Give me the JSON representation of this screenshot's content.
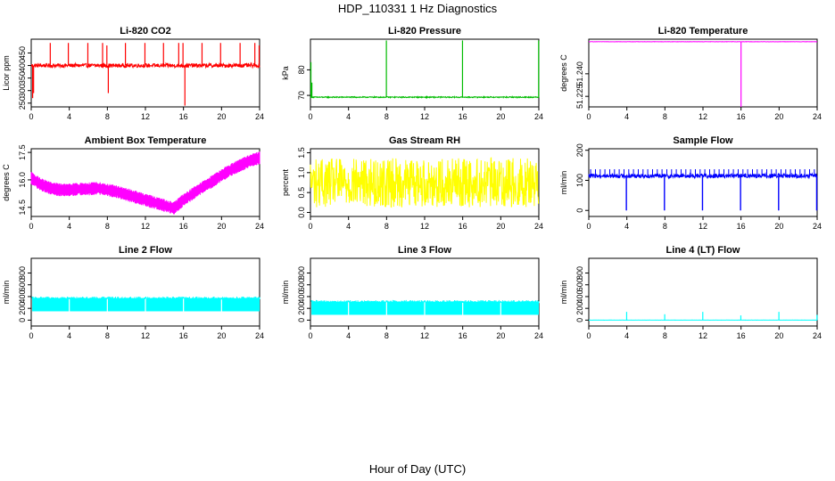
{
  "figure": {
    "title": "HDP_110331  1 Hz Diagnostics",
    "xlabel": "Hour of Day (UTC)"
  },
  "chart_data": [
    {
      "type": "line",
      "title": "Li-820 CO2",
      "ylabel": "Licor ppm",
      "color": "#ff0000",
      "xlim": [
        0,
        24
      ],
      "ylim": [
        235,
        505
      ],
      "xticks": [
        0,
        4,
        8,
        12,
        16,
        20,
        24
      ],
      "yticks": [
        250,
        300,
        350,
        400,
        450
      ],
      "baseline": 400,
      "noise": 8,
      "spikes": [
        {
          "x": 0.15,
          "y": 270
        },
        {
          "x": 0.25,
          "y": 290
        },
        {
          "x": 2.0,
          "y": 490
        },
        {
          "x": 3.9,
          "y": 490
        },
        {
          "x": 5.95,
          "y": 490
        },
        {
          "x": 7.5,
          "y": 490
        },
        {
          "x": 7.95,
          "y": 480
        },
        {
          "x": 8.1,
          "y": 290
        },
        {
          "x": 9.9,
          "y": 490
        },
        {
          "x": 11.95,
          "y": 490
        },
        {
          "x": 13.9,
          "y": 490
        },
        {
          "x": 15.5,
          "y": 490
        },
        {
          "x": 15.95,
          "y": 490
        },
        {
          "x": 16.15,
          "y": 240
        },
        {
          "x": 17.95,
          "y": 490
        },
        {
          "x": 19.9,
          "y": 490
        },
        {
          "x": 21.95,
          "y": 490
        },
        {
          "x": 23.5,
          "y": 490
        },
        {
          "x": 23.95,
          "y": 480
        }
      ]
    },
    {
      "type": "line",
      "title": "Li-820 Pressure",
      "ylabel": "kPa",
      "color": "#00bb00",
      "xlim": [
        0,
        24
      ],
      "ylim": [
        65.5,
        92
      ],
      "xticks": [
        0,
        4,
        8,
        12,
        16,
        20,
        24
      ],
      "yticks": [
        70,
        80
      ],
      "baseline": 69.3,
      "noise": 0.2,
      "spikes": [
        {
          "x": 0.05,
          "y": 83
        },
        {
          "x": 0.15,
          "y": 75
        },
        {
          "x": 7.98,
          "y": 91.5
        },
        {
          "x": 15.98,
          "y": 91.5
        },
        {
          "x": 23.98,
          "y": 91.5
        }
      ]
    },
    {
      "type": "line",
      "title": "Li-820 Temperature",
      "ylabel": "degrees C",
      "color": "#ff00ff",
      "xlim": [
        0,
        24
      ],
      "ylim": [
        51.218,
        51.263
      ],
      "xticks": [
        0,
        4,
        8,
        12,
        16,
        20,
        24
      ],
      "yticks": [
        51.225,
        51.24
      ],
      "ytick_labels": [
        "51.225",
        "51.240"
      ],
      "baseline": 51.2613,
      "noise": 0.0001,
      "spikes": [
        {
          "x": 16.0,
          "y": 51.218
        }
      ]
    },
    {
      "type": "line",
      "title": "Ambient Box Temperature",
      "ylabel": "degrees C",
      "color": "#ff00ff",
      "xlim": [
        0,
        24
      ],
      "ylim": [
        14.0,
        17.7
      ],
      "xticks": [
        0,
        4,
        8,
        12,
        16,
        20,
        24
      ],
      "yticks": [
        14.5,
        16.0,
        17.5
      ],
      "ytick_labels": [
        "14.5",
        "16.0",
        "17.5"
      ],
      "trend_x": [
        0,
        1,
        2,
        3,
        4,
        5,
        6,
        7,
        8,
        9,
        10,
        11,
        12,
        13,
        14,
        15,
        16,
        17,
        18,
        19,
        20,
        21,
        22,
        23,
        24
      ],
      "trend_y": [
        16.1,
        15.75,
        15.55,
        15.45,
        15.45,
        15.5,
        15.5,
        15.55,
        15.45,
        15.35,
        15.2,
        15.05,
        14.9,
        14.75,
        14.6,
        14.45,
        14.9,
        15.25,
        15.6,
        15.9,
        16.25,
        16.55,
        16.8,
        17.05,
        17.2
      ],
      "noise": 0.35
    },
    {
      "type": "line",
      "title": "Gas Stream RH",
      "ylabel": "percent",
      "color": "#ffff00",
      "xlim": [
        0,
        24
      ],
      "ylim": [
        -0.1,
        1.6
      ],
      "xticks": [
        0,
        4,
        8,
        12,
        16,
        20,
        24
      ],
      "yticks": [
        0.0,
        0.5,
        1.0,
        1.5
      ],
      "ytick_labels": [
        "0.0",
        "0.5",
        "1.0",
        "1.5"
      ],
      "baseline": 0.75,
      "noise": 0.62
    },
    {
      "type": "line",
      "title": "Sample Flow",
      "ylabel": "ml/min",
      "color": "#0000ff",
      "xlim": [
        0,
        24
      ],
      "ylim": [
        -20,
        205
      ],
      "xticks": [
        0,
        4,
        8,
        12,
        16,
        20,
        24
      ],
      "yticks": [
        0,
        100,
        200
      ],
      "baseline": 115,
      "noise": 7,
      "dips": [
        {
          "x": 3.95,
          "y": 0
        },
        {
          "x": 7.95,
          "y": 0
        },
        {
          "x": 11.95,
          "y": 0
        },
        {
          "x": 15.95,
          "y": 0
        },
        {
          "x": 19.95,
          "y": 0
        },
        {
          "x": 23.95,
          "y": 0
        }
      ]
    },
    {
      "type": "line",
      "title": "Line 2 Flow",
      "ylabel": "ml/min",
      "color": "#00ffff",
      "xlim": [
        0,
        24
      ],
      "ylim": [
        -100,
        1050
      ],
      "xticks": [
        0,
        4,
        8,
        12,
        16,
        20,
        24
      ],
      "yticks": [
        0,
        200,
        400,
        600,
        800
      ],
      "band": [
        150,
        370
      ],
      "gaps": [
        0,
        4,
        8,
        12,
        16,
        20,
        24
      ]
    },
    {
      "type": "line",
      "title": "Line 3 Flow",
      "ylabel": "ml/min",
      "color": "#00ffff",
      "xlim": [
        0,
        24
      ],
      "ylim": [
        -100,
        1050
      ],
      "xticks": [
        0,
        4,
        8,
        12,
        16,
        20,
        24
      ],
      "yticks": [
        0,
        200,
        400,
        600,
        800
      ],
      "band": [
        90,
        310
      ],
      "gaps": [
        0,
        4,
        8,
        12,
        16,
        20,
        24
      ]
    },
    {
      "type": "line",
      "title": "Line 4 (LT) Flow",
      "ylabel": "ml/min",
      "color": "#00ffff",
      "xlim": [
        0,
        24
      ],
      "ylim": [
        -100,
        1050
      ],
      "xticks": [
        0,
        4,
        8,
        12,
        16,
        20,
        24
      ],
      "yticks": [
        0,
        200,
        400,
        600,
        800
      ],
      "baseline": 0,
      "noise": 1,
      "spikes": [
        {
          "x": 3.98,
          "y": 140
        },
        {
          "x": 7.98,
          "y": 100
        },
        {
          "x": 11.98,
          "y": 140
        },
        {
          "x": 15.98,
          "y": 80
        },
        {
          "x": 19.98,
          "y": 140
        },
        {
          "x": 23.98,
          "y": 90
        }
      ]
    }
  ]
}
